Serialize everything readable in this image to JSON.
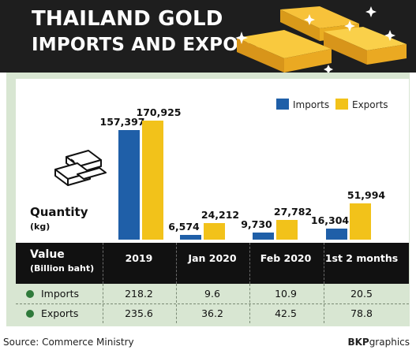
{
  "header": {
    "title_line1": "THAILAND GOLD",
    "title_line2": "IMPORTS AND EXPORTS"
  },
  "colors": {
    "header_bg": "#1e1e1e",
    "panel_bg": "#d8e6d2",
    "imports": "#1f5fa8",
    "exports": "#f2c21a",
    "table_head": "#111111",
    "dot": "#2f7a3b"
  },
  "chart_data": {
    "type": "bar",
    "title": "THAILAND GOLD IMPORTS AND EXPORTS",
    "ylabel": "Quantity (kg)",
    "categories": [
      "2019",
      "Jan 2020",
      "Feb 2020",
      "1st 2 months"
    ],
    "series": [
      {
        "name": "Imports",
        "values": [
          157397,
          6574,
          9730,
          16304
        ]
      },
      {
        "name": "Exports",
        "values": [
          170925,
          24212,
          27782,
          51994
        ]
      }
    ],
    "value_labels": {
      "Imports": [
        "157,397",
        "6,574",
        "9,730",
        "16,304"
      ],
      "Exports": [
        "170,925",
        "24,212",
        "27,782",
        "51,994"
      ]
    },
    "legend_position": "top-right",
    "grid": false
  },
  "quantity": {
    "label": "Quantity",
    "unit": "(kg)"
  },
  "table": {
    "value_label": "Value",
    "value_unit": "(Billion baht)",
    "columns": [
      "2019",
      "Jan 2020",
      "Feb 2020",
      "1st 2 months"
    ],
    "rows": [
      {
        "label": "Imports",
        "values": [
          "218.2",
          "9.6",
          "10.9",
          "20.5"
        ]
      },
      {
        "label": "Exports",
        "values": [
          "235.6",
          "36.2",
          "42.5",
          "78.8"
        ]
      }
    ]
  },
  "footer": {
    "source": "Source: Commerce Ministry",
    "credit_bold": "BKP",
    "credit_rest": "graphics"
  }
}
